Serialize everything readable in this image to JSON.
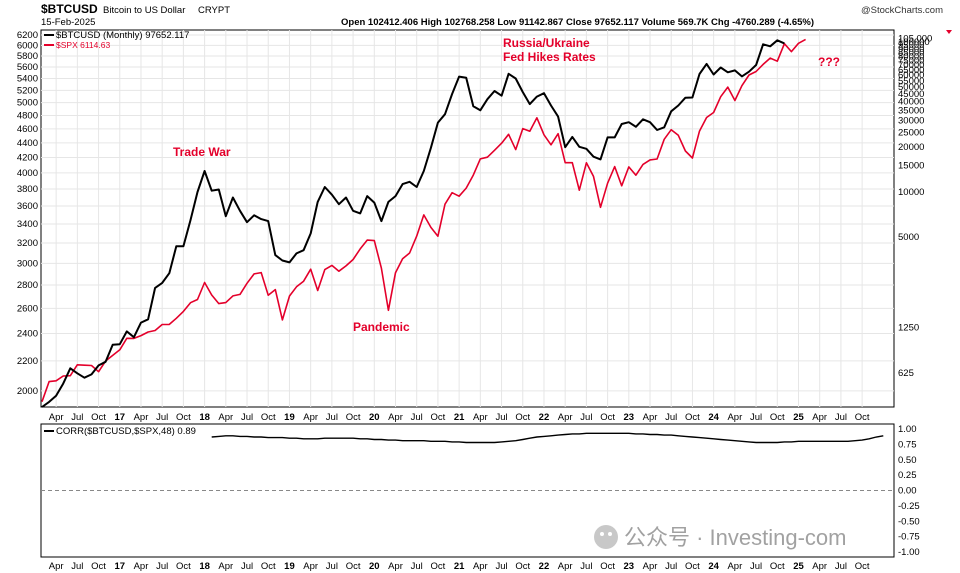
{
  "header": {
    "symbol": "$BTCUSD",
    "name": "Bitcoin to US Dollar",
    "exchange": "CRYPT",
    "date": "15-Feb-2025",
    "ohlc": "Open 102412.406  High 102768.258  Low 91142.867  Close 97652.117  Volume 569.7K  Chg -4760.289 (-4.65%)",
    "source": "@StockCharts.com"
  },
  "legend": {
    "btc": "$BTCUSD (Monthly) 97652.117",
    "spx": "$SPX 6114.63"
  },
  "annotations": {
    "trade_war": "Trade War",
    "pandemic": "Pandemic",
    "russia": "Russia/Ukraine",
    "fed": "Fed Hikes Rates",
    "question": "???"
  },
  "watermark": "公众号 · Investing-com",
  "colors": {
    "btc": "#000000",
    "spx": "#e4002b",
    "annot": "#e4002b",
    "grid": "#e6e6e6"
  },
  "chart_data": [
    {
      "type": "line",
      "x_labels": [
        "Apr",
        "Jul",
        "Oct",
        "17",
        "Apr",
        "Jul",
        "Oct",
        "18",
        "Apr",
        "Jul",
        "Oct",
        "19",
        "Apr",
        "Jul",
        "Oct",
        "20",
        "Apr",
        "Jul",
        "Oct",
        "21",
        "Apr",
        "Jul",
        "Oct",
        "22",
        "Apr",
        "Jul",
        "Oct",
        "23",
        "Apr",
        "Jul",
        "Oct",
        "24",
        "Apr",
        "Jul",
        "Oct",
        "25",
        "Apr",
        "Jul",
        "Oct"
      ],
      "x_start": "2016-02",
      "left_axis": {
        "label": "$SPX",
        "ticks": [
          2000,
          2200,
          2400,
          2600,
          2800,
          3000,
          3200,
          3400,
          3600,
          3800,
          4000,
          4200,
          4400,
          4600,
          4800,
          5000,
          5200,
          5400,
          5600,
          5800,
          6000,
          6200
        ],
        "scale": "log",
        "range": [
          1900,
          6300
        ]
      },
      "right_axis": {
        "label": "$BTCUSD",
        "ticks": [
          625,
          1250,
          5000,
          10000,
          15000,
          20000,
          25000,
          30000,
          35000,
          40000,
          45000,
          50000,
          55000,
          60000,
          65000,
          70000,
          75000,
          80000,
          85000,
          90000,
          95000,
          100000,
          105000
        ],
        "last_label": "105,000",
        "scale": "log",
        "range": [
          370,
          120000
        ]
      },
      "series": [
        {
          "name": "$BTCUSD (Monthly)",
          "axis": "right",
          "values": [
            370,
            400,
            440,
            530,
            670,
            620,
            580,
            610,
            700,
            740,
            960,
            970,
            1180,
            1080,
            1350,
            1420,
            2300,
            2480,
            2880,
            4350,
            4350,
            6500,
            10000,
            13800,
            10200,
            10400,
            6900,
            9200,
            7500,
            6300,
            7000,
            6600,
            6400,
            3800,
            3500,
            3400,
            3900,
            4100,
            5300,
            8600,
            10800,
            9600,
            8300,
            9200,
            7500,
            7200,
            9400,
            8500,
            6400,
            8600,
            9400,
            11300,
            11700,
            10800,
            13800,
            19700,
            29000,
            33000,
            45000,
            58700,
            57700,
            37300,
            35000,
            41500,
            47100,
            43800,
            61300,
            57000,
            46300,
            38500,
            43200,
            45500,
            37700,
            31800,
            19900,
            23300,
            20000,
            19400,
            17200,
            16500,
            23100,
            23100,
            28400,
            29200,
            27200,
            30500,
            29200,
            25900,
            27000,
            34500,
            37700,
            42500,
            42600,
            61100,
            71300,
            60600,
            67500,
            62700,
            64600,
            58900,
            63300,
            70200,
            96400,
            93400,
            102400,
            97652
          ]
        },
        {
          "name": "$SPX",
          "axis": "left",
          "values": [
            1932,
            2060,
            2065,
            2097,
            2099,
            2173,
            2170,
            2168,
            2126,
            2199,
            2239,
            2279,
            2364,
            2363,
            2384,
            2412,
            2423,
            2470,
            2471,
            2519,
            2575,
            2647,
            2674,
            2823,
            2713,
            2640,
            2648,
            2705,
            2718,
            2816,
            2901,
            2913,
            2711,
            2760,
            2506,
            2704,
            2784,
            2834,
            2945,
            2752,
            2941,
            2980,
            2926,
            2976,
            3037,
            3141,
            3230,
            3225,
            2954,
            2584,
            2912,
            3044,
            3100,
            3271,
            3500,
            3363,
            3270,
            3621,
            3756,
            3714,
            3811,
            3972,
            4181,
            4204,
            4297,
            4395,
            4522,
            4307,
            4605,
            4567,
            4766,
            4515,
            4373,
            4530,
            4131,
            4132,
            3785,
            4130,
            3955,
            3585,
            3871,
            4080,
            3839,
            4076,
            3970,
            4109,
            4169,
            4180,
            4450,
            4589,
            4508,
            4288,
            4194,
            4568,
            4770,
            4846,
            5096,
            5254,
            5035,
            5277,
            5460,
            5522,
            5648,
            5762,
            5705,
            6032,
            5881,
            6040,
            6114
          ]
        }
      ]
    },
    {
      "type": "line",
      "title": "CORR($BTCUSD,$SPX,48) 0.89",
      "y_ticks": [
        "1.00",
        "0.75",
        "0.50",
        "0.25",
        "0.00",
        "-0.25",
        "-0.50",
        "-0.75",
        "-1.00"
      ],
      "ylim": [
        -1,
        1
      ],
      "x_start": "2018-02",
      "series": [
        {
          "name": "CORR($BTCUSD,$SPX,48)",
          "values": [
            0.87,
            0.88,
            0.89,
            0.89,
            0.88,
            0.88,
            0.87,
            0.87,
            0.86,
            0.86,
            0.86,
            0.85,
            0.85,
            0.84,
            0.84,
            0.84,
            0.85,
            0.85,
            0.85,
            0.85,
            0.85,
            0.84,
            0.84,
            0.83,
            0.83,
            0.82,
            0.82,
            0.81,
            0.81,
            0.81,
            0.81,
            0.8,
            0.8,
            0.8,
            0.79,
            0.79,
            0.78,
            0.78,
            0.78,
            0.78,
            0.78,
            0.79,
            0.8,
            0.81,
            0.83,
            0.85,
            0.87,
            0.88,
            0.89,
            0.9,
            0.91,
            0.92,
            0.92,
            0.93,
            0.93,
            0.93,
            0.93,
            0.93,
            0.93,
            0.93,
            0.92,
            0.92,
            0.91,
            0.91,
            0.9,
            0.9,
            0.89,
            0.88,
            0.87,
            0.86,
            0.85,
            0.84,
            0.83,
            0.82,
            0.81,
            0.8,
            0.79,
            0.78,
            0.78,
            0.78,
            0.78,
            0.79,
            0.79,
            0.8,
            0.8,
            0.8,
            0.8,
            0.8,
            0.8,
            0.8,
            0.8,
            0.81,
            0.82,
            0.84,
            0.87,
            0.89
          ]
        }
      ]
    }
  ]
}
